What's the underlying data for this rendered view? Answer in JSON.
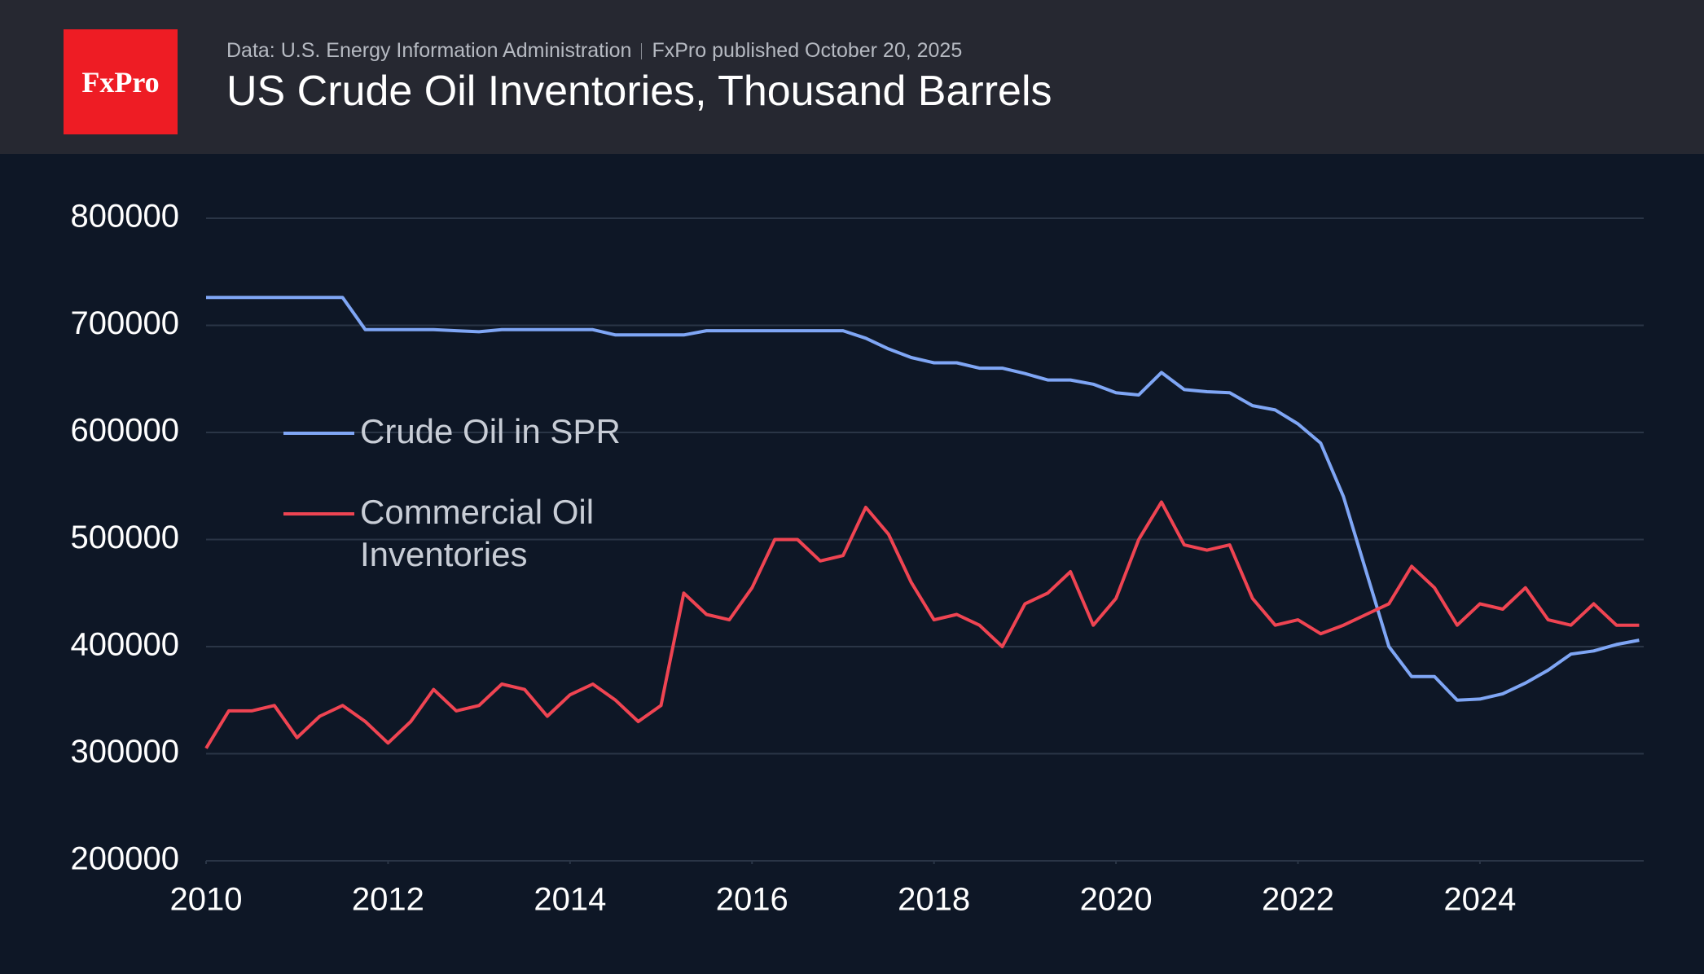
{
  "logo": "FxPro",
  "header": {
    "source": "Data: U.S. Energy Information Administration",
    "published": "FxPro published October 20, 2025"
  },
  "chart_data": {
    "type": "line",
    "title": "US Crude Oil Inventories, Thousand Barrels",
    "x": [
      2010,
      2010.25,
      2010.5,
      2010.75,
      2011,
      2011.25,
      2011.5,
      2011.75,
      2012,
      2012.25,
      2012.5,
      2012.75,
      2013,
      2013.25,
      2013.5,
      2013.75,
      2014,
      2014.25,
      2014.5,
      2014.75,
      2015,
      2015.25,
      2015.5,
      2015.75,
      2016,
      2016.25,
      2016.5,
      2016.75,
      2017,
      2017.25,
      2017.5,
      2017.75,
      2018,
      2018.25,
      2018.5,
      2018.75,
      2019,
      2019.25,
      2019.5,
      2019.75,
      2020,
      2020.25,
      2020.5,
      2020.75,
      2021,
      2021.25,
      2021.5,
      2021.75,
      2022,
      2022.25,
      2022.5,
      2022.75,
      2023,
      2023.25,
      2023.5,
      2023.75,
      2024,
      2024.25,
      2024.5,
      2024.75,
      2025,
      2025.25,
      2025.5,
      2025.75
    ],
    "series": [
      {
        "name": "Crude Oil in SPR",
        "color": "#7fa6f5",
        "values": [
          726000,
          726000,
          726000,
          726000,
          726000,
          726000,
          726000,
          696000,
          696000,
          696000,
          696000,
          695000,
          694000,
          696000,
          696000,
          696000,
          696000,
          696000,
          691000,
          691000,
          691000,
          691000,
          695000,
          695000,
          695000,
          695000,
          695000,
          695000,
          695000,
          688000,
          678000,
          670000,
          665000,
          665000,
          660000,
          660000,
          655000,
          649000,
          649000,
          645000,
          637000,
          635000,
          656000,
          640000,
          638000,
          637000,
          625000,
          621000,
          608000,
          590000,
          540000,
          470000,
          400000,
          372000,
          372000,
          350000,
          351000,
          356000,
          366000,
          378000,
          393000,
          396000,
          402000,
          406000
        ]
      },
      {
        "name": "Commercial Oil Inventories",
        "color": "#ef4452",
        "values": [
          305000,
          340000,
          340000,
          345000,
          315000,
          335000,
          345000,
          330000,
          310000,
          330000,
          360000,
          340000,
          345000,
          365000,
          360000,
          335000,
          355000,
          365000,
          350000,
          330000,
          345000,
          450000,
          430000,
          425000,
          455000,
          500000,
          500000,
          480000,
          485000,
          530000,
          505000,
          460000,
          425000,
          430000,
          420000,
          400000,
          440000,
          450000,
          470000,
          420000,
          445000,
          500000,
          535000,
          495000,
          490000,
          495000,
          445000,
          420000,
          425000,
          412000,
          420000,
          430000,
          440000,
          475000,
          455000,
          420000,
          440000,
          435000,
          455000,
          425000,
          420000,
          440000,
          420000,
          420000
        ]
      }
    ],
    "xlim": [
      2010,
      2025.8
    ],
    "xticks": [
      2010,
      2012,
      2014,
      2016,
      2018,
      2020,
      2022,
      2024
    ],
    "ylim": [
      200000,
      800000
    ],
    "yticks": [
      200000,
      300000,
      400000,
      500000,
      600000,
      700000,
      800000
    ],
    "grid": true
  }
}
